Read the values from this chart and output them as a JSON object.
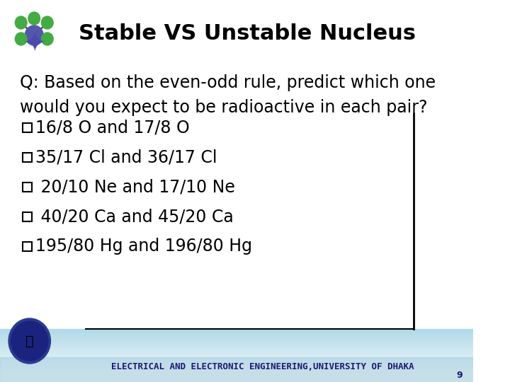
{
  "title": "Stable VS Unstable Nucleus",
  "question": "Q: Based on the even-odd rule, predict which one\nwould you expect to be radioactive in each pair?",
  "bullet_items": [
    "16/8 O and 17/8 O",
    "35/17 Cl and 36/17 Cl",
    " 20/10 Ne and 17/10 Ne",
    " 40/20 Ca and 45/20 Ca",
    "195/80 Hg and 196/80 Hg"
  ],
  "footer_text": "ELECTRICAL AND ELECTRONIC ENGINEERING,UNIVERSITY OF DHAKA",
  "bg_color": "#ffffff",
  "title_color": "#000000",
  "text_color": "#000000",
  "footer_bg_start": "#b0d8e8",
  "footer_bg_end": "#ffffff",
  "border_color": "#000000",
  "title_fontsize": 22,
  "question_fontsize": 17,
  "bullet_fontsize": 17,
  "footer_fontsize": 9,
  "page_number": "9"
}
